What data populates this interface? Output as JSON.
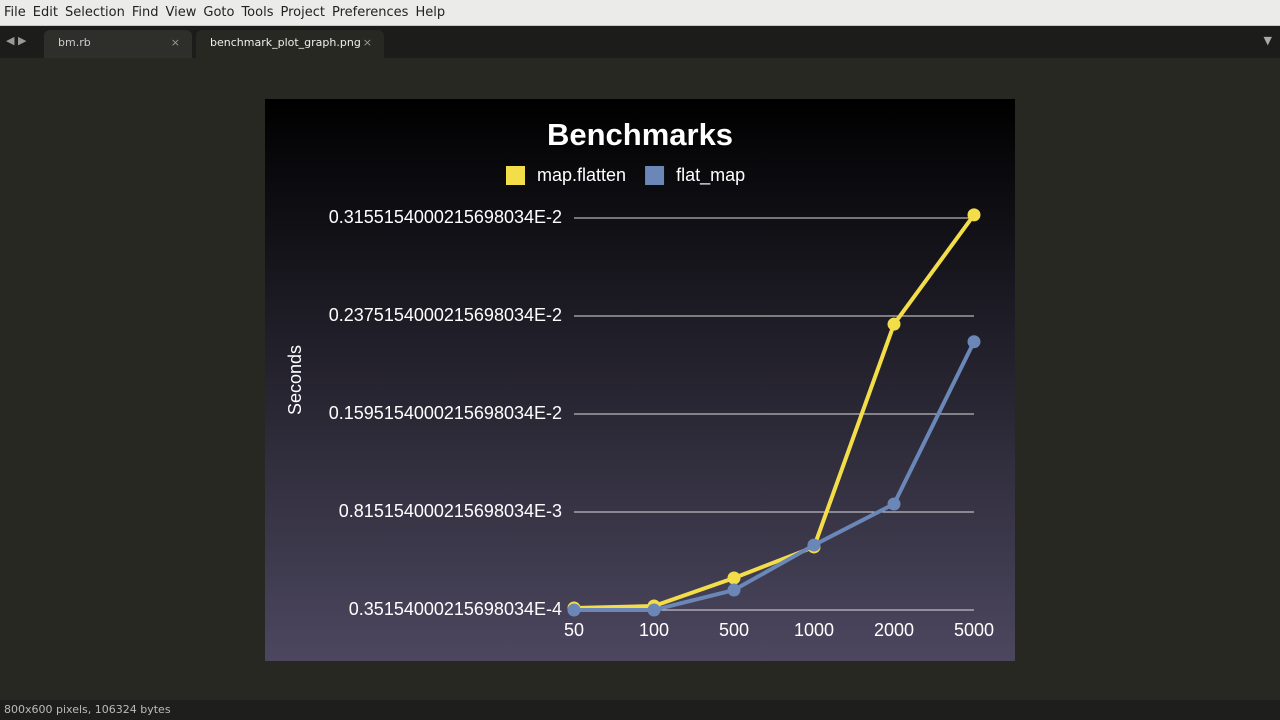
{
  "menu": [
    "File",
    "Edit",
    "Selection",
    "Find",
    "View",
    "Goto",
    "Tools",
    "Project",
    "Preferences",
    "Help"
  ],
  "tabs": [
    "bm.rb",
    "benchmark_plot_graph.png"
  ],
  "status": "800x600 pixels, 106324 bytes",
  "chart_data": {
    "type": "line",
    "title": "Benchmarks",
    "y_label": "Seconds",
    "categories": [
      "50",
      "100",
      "500",
      "1000",
      "2000",
      "5000"
    ],
    "series": [
      {
        "name": "map.flatten",
        "color": "#f3de4a",
        "values": [
          5.11e-05,
          6.7e-05,
          0.00029,
          0.000537,
          0.00231,
          0.00318
        ]
      },
      {
        "name": "flat_map",
        "color": "#6b87b8",
        "values": [
          3.52e-05,
          3.52e-05,
          0.000194,
          0.000552,
          0.000879,
          0.00217
        ]
      }
    ],
    "ylim": [
      3.5154000215698034e-05,
      0.003155154000215698
    ],
    "yticks": [
      {
        "value": 3.5154000215698034e-05,
        "label": "0.35154000215698034E-4"
      },
      {
        "value": 0.000815154000215698,
        "label": "0.815154000215698034E-3"
      },
      {
        "value": 0.001595154000215698,
        "label": "0.1595154000215698034E-2"
      },
      {
        "value": 0.002375154000215698,
        "label": "0.2375154000215698034E-2"
      },
      {
        "value": 0.003155154000215698,
        "label": "0.3155154000215698034E-2"
      }
    ],
    "grid": true,
    "legend": "top"
  }
}
